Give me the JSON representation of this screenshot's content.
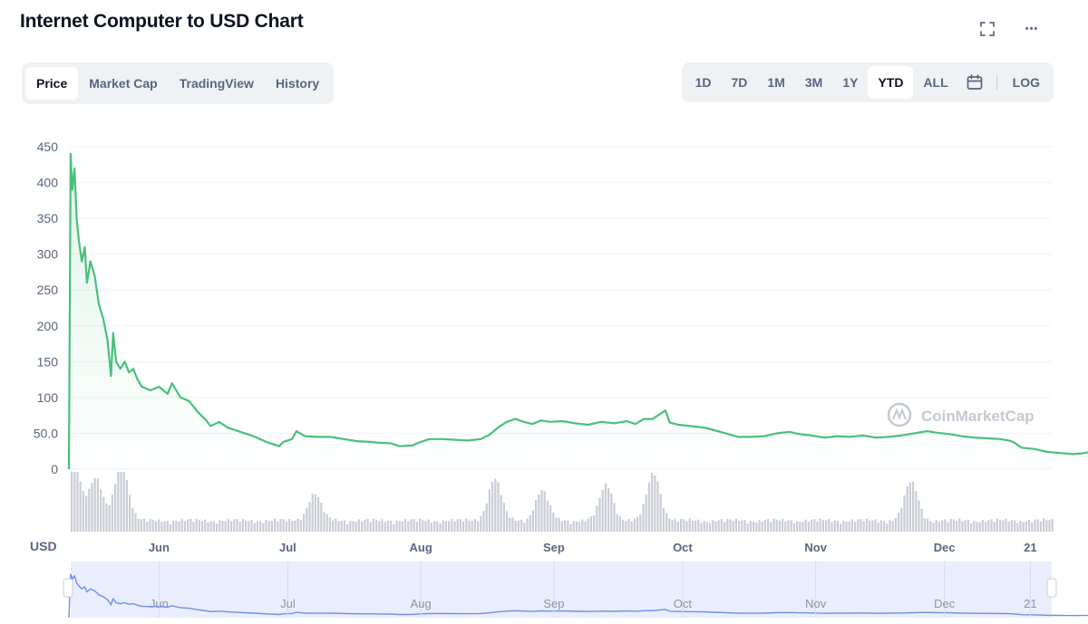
{
  "title": "Internet Computer to USD Chart",
  "icons": {
    "fullscreen": "fullscreen-icon",
    "more": "more-icon",
    "calendar": "calendar-icon"
  },
  "more_label": "•••",
  "tabs": [
    "Price",
    "Market Cap",
    "TradingView",
    "History"
  ],
  "active_tab": "Price",
  "ranges": [
    "1D",
    "7D",
    "1M",
    "3M",
    "1Y",
    "YTD",
    "ALL"
  ],
  "active_range": "YTD",
  "log_label": "LOG",
  "watermark": "CoinMarketCap",
  "currency_label": "USD",
  "colors": {
    "line": "#49c07a",
    "volume": "#c9cdd5",
    "navigator_line": "#6f8fe8",
    "navigator_bg": "#eaedfb"
  },
  "chart_data": {
    "type": "line",
    "y_ticks": [
      "450",
      "400",
      "350",
      "300",
      "250",
      "200",
      "150",
      "100",
      "50.0",
      "0"
    ],
    "ylim": [
      0,
      450
    ],
    "x_ticks": [
      "Jun",
      "Jul",
      "Aug",
      "Sep",
      "Oct",
      "Nov",
      "Dec",
      "21"
    ],
    "x_tick_days": [
      21,
      51,
      82,
      113,
      143,
      174,
      204,
      224
    ],
    "x_range_days": [
      0,
      229
    ],
    "series": [
      {
        "values": [
          [
            0,
            0
          ],
          [
            0.4,
            440
          ],
          [
            0.8,
            390
          ],
          [
            1.3,
            420
          ],
          [
            1.8,
            350
          ],
          [
            2.3,
            320
          ],
          [
            3,
            290
          ],
          [
            3.7,
            310
          ],
          [
            4.2,
            260
          ],
          [
            5,
            290
          ],
          [
            6,
            270
          ],
          [
            7,
            230
          ],
          [
            8,
            210
          ],
          [
            9,
            180
          ],
          [
            9.8,
            130
          ],
          [
            10.3,
            190
          ],
          [
            11,
            150
          ],
          [
            12,
            140
          ],
          [
            13,
            150
          ],
          [
            14,
            135
          ],
          [
            15,
            140
          ],
          [
            16,
            125
          ],
          [
            17,
            115
          ],
          [
            19,
            110
          ],
          [
            21,
            115
          ],
          [
            23,
            105
          ],
          [
            24,
            120
          ],
          [
            26,
            100
          ],
          [
            28,
            95
          ],
          [
            30,
            80
          ],
          [
            32,
            68
          ],
          [
            33,
            60
          ],
          [
            35,
            66
          ],
          [
            37,
            58
          ],
          [
            40,
            52
          ],
          [
            43,
            46
          ],
          [
            46,
            38
          ],
          [
            49,
            32
          ],
          [
            50,
            38
          ],
          [
            52,
            42
          ],
          [
            53,
            53
          ],
          [
            55,
            46
          ],
          [
            58,
            45
          ],
          [
            61,
            45
          ],
          [
            64,
            42
          ],
          [
            67,
            39
          ],
          [
            70,
            38
          ],
          [
            72,
            37
          ],
          [
            75,
            36
          ],
          [
            77,
            32
          ],
          [
            80,
            33
          ],
          [
            82,
            38
          ],
          [
            84,
            42
          ],
          [
            87,
            42
          ],
          [
            90,
            41
          ],
          [
            93,
            40
          ],
          [
            96,
            42
          ],
          [
            98,
            48
          ],
          [
            100,
            58
          ],
          [
            102,
            66
          ],
          [
            104,
            70
          ],
          [
            106,
            66
          ],
          [
            108,
            63
          ],
          [
            110,
            68
          ],
          [
            112,
            66
          ],
          [
            115,
            67
          ],
          [
            118,
            64
          ],
          [
            121,
            62
          ],
          [
            124,
            66
          ],
          [
            127,
            64
          ],
          [
            130,
            67
          ],
          [
            132,
            63
          ],
          [
            134,
            70
          ],
          [
            136,
            70
          ],
          [
            138,
            78
          ],
          [
            139,
            82
          ],
          [
            140,
            65
          ],
          [
            142,
            62
          ],
          [
            145,
            60
          ],
          [
            148,
            58
          ],
          [
            150,
            55
          ],
          [
            153,
            50
          ],
          [
            156,
            45
          ],
          [
            159,
            45
          ],
          [
            162,
            46
          ],
          [
            165,
            50
          ],
          [
            168,
            52
          ],
          [
            170,
            49
          ],
          [
            173,
            47
          ],
          [
            176,
            44
          ],
          [
            179,
            46
          ],
          [
            182,
            45
          ],
          [
            185,
            47
          ],
          [
            188,
            44
          ],
          [
            191,
            45
          ],
          [
            194,
            47
          ],
          [
            197,
            50
          ],
          [
            200,
            53
          ],
          [
            202,
            51
          ],
          [
            205,
            49
          ],
          [
            208,
            46
          ],
          [
            211,
            44
          ],
          [
            214,
            43
          ],
          [
            217,
            42
          ],
          [
            219,
            40
          ],
          [
            220,
            38
          ],
          [
            222,
            30
          ],
          [
            225,
            28
          ],
          [
            228,
            24
          ],
          [
            230,
            23
          ],
          [
            232,
            22
          ],
          [
            234,
            21
          ],
          [
            236,
            22
          ],
          [
            238,
            24
          ],
          [
            240,
            26
          ],
          [
            242,
            27
          ]
        ]
      }
    ]
  }
}
